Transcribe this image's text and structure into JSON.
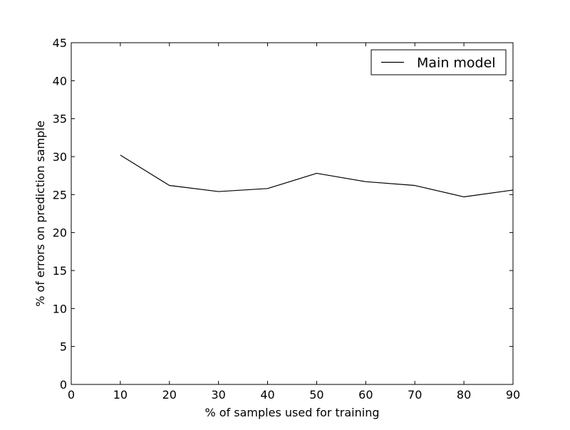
{
  "chart_data": {
    "type": "line",
    "title": "",
    "xlabel": "% of samples used for training",
    "ylabel": "% of errors on prediction sample",
    "xlim": [
      0,
      90
    ],
    "ylim": [
      0,
      45
    ],
    "x_ticks": [
      0,
      10,
      20,
      30,
      40,
      50,
      60,
      70,
      80,
      90
    ],
    "y_ticks": [
      0,
      5,
      10,
      15,
      20,
      25,
      30,
      35,
      40,
      45
    ],
    "grid": false,
    "legend_position": "top-right",
    "series": [
      {
        "name": "Main model",
        "color": "#000000",
        "x": [
          10,
          20,
          30,
          40,
          50,
          60,
          70,
          80,
          90
        ],
        "y": [
          30.2,
          26.2,
          25.4,
          25.8,
          27.8,
          26.7,
          26.2,
          24.7,
          25.6
        ]
      }
    ]
  }
}
